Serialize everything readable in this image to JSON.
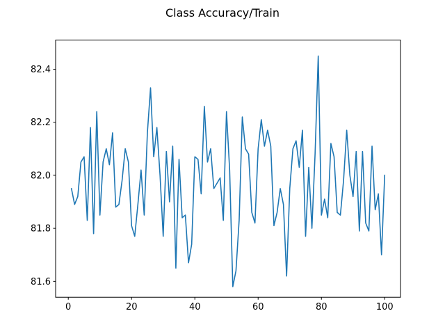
{
  "chart_data": {
    "type": "line",
    "title": "Class Accuracy/Train",
    "xlabel": "",
    "ylabel": "",
    "xlim": [
      -4.0,
      105.0
    ],
    "ylim": [
      81.54,
      82.51
    ],
    "grid": false,
    "legend": "none",
    "series_color": "#1f77b4",
    "x_ticks": [
      {
        "value": 0,
        "label": "0"
      },
      {
        "value": 20,
        "label": "20"
      },
      {
        "value": 40,
        "label": "40"
      },
      {
        "value": 60,
        "label": "60"
      },
      {
        "value": 80,
        "label": "80"
      },
      {
        "value": 100,
        "label": "100"
      }
    ],
    "y_ticks": [
      {
        "value": 81.6,
        "label": "81.6"
      },
      {
        "value": 81.8,
        "label": "81.8"
      },
      {
        "value": 82.0,
        "label": "82.0"
      },
      {
        "value": 82.2,
        "label": "82.2"
      },
      {
        "value": 82.4,
        "label": "82.4"
      }
    ],
    "series": [
      {
        "x": [
          1,
          2,
          3,
          4,
          5,
          6,
          7,
          8,
          9,
          10,
          11,
          12,
          13,
          14,
          15,
          16,
          17,
          18,
          19,
          20,
          21,
          22,
          23,
          24,
          25,
          26,
          27,
          28,
          29,
          30,
          31,
          32,
          33,
          34,
          35,
          36,
          37,
          38,
          39,
          40,
          41,
          42,
          43,
          44,
          45,
          46,
          47,
          48,
          49,
          50,
          51,
          52,
          53,
          54,
          55,
          56,
          57,
          58,
          59,
          60,
          61,
          62,
          63,
          64,
          65,
          66,
          67,
          68,
          69,
          70,
          71,
          72,
          73,
          74,
          75,
          76,
          77,
          78,
          79,
          80,
          81,
          82,
          83,
          84,
          85,
          86,
          87,
          88,
          89,
          90,
          91,
          92,
          93,
          94,
          95,
          96,
          97,
          98,
          99,
          100
        ],
        "values": [
          81.95,
          81.89,
          81.92,
          82.05,
          82.07,
          81.83,
          82.18,
          81.78,
          82.24,
          81.85,
          82.05,
          82.1,
          82.04,
          82.16,
          81.88,
          81.89,
          81.98,
          82.1,
          82.05,
          81.81,
          81.77,
          81.89,
          82.02,
          81.85,
          82.16,
          82.33,
          82.07,
          82.18,
          82.0,
          81.77,
          82.09,
          81.9,
          82.11,
          81.65,
          82.06,
          81.84,
          81.85,
          81.67,
          81.74,
          82.07,
          82.06,
          81.93,
          82.26,
          82.05,
          82.1,
          81.95,
          81.97,
          81.99,
          81.83,
          82.24,
          82.02,
          81.58,
          81.64,
          81.83,
          82.22,
          82.1,
          82.08,
          81.86,
          81.82,
          82.1,
          82.21,
          82.11,
          82.17,
          82.11,
          81.81,
          81.86,
          81.95,
          81.89,
          81.62,
          81.95,
          82.1,
          82.13,
          82.03,
          82.17,
          81.77,
          82.03,
          81.8,
          82.08,
          82.45,
          81.85,
          81.91,
          81.84,
          82.12,
          82.07,
          81.86,
          81.85,
          81.98,
          82.17,
          82.0,
          81.92,
          82.09,
          81.79,
          82.09,
          81.82,
          81.79,
          82.11,
          81.87,
          81.93,
          81.7,
          82.0
        ]
      }
    ]
  }
}
